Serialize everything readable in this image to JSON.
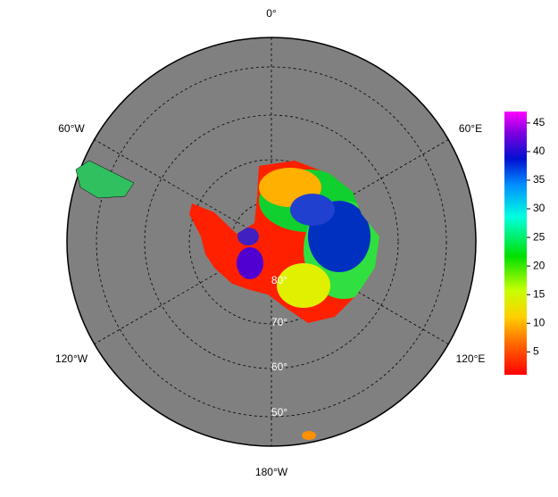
{
  "map": {
    "meridian_labels": [
      "0°",
      "60°E",
      "120°E",
      "180°W",
      "120°W",
      "60°W"
    ],
    "latitude_labels": [
      "80°",
      "70°",
      "60°",
      "50°"
    ]
  },
  "colorbar": {
    "lim": [
      1,
      47
    ],
    "ticks": [
      5,
      10,
      15,
      20,
      25,
      30,
      35,
      40,
      45
    ]
  }
}
